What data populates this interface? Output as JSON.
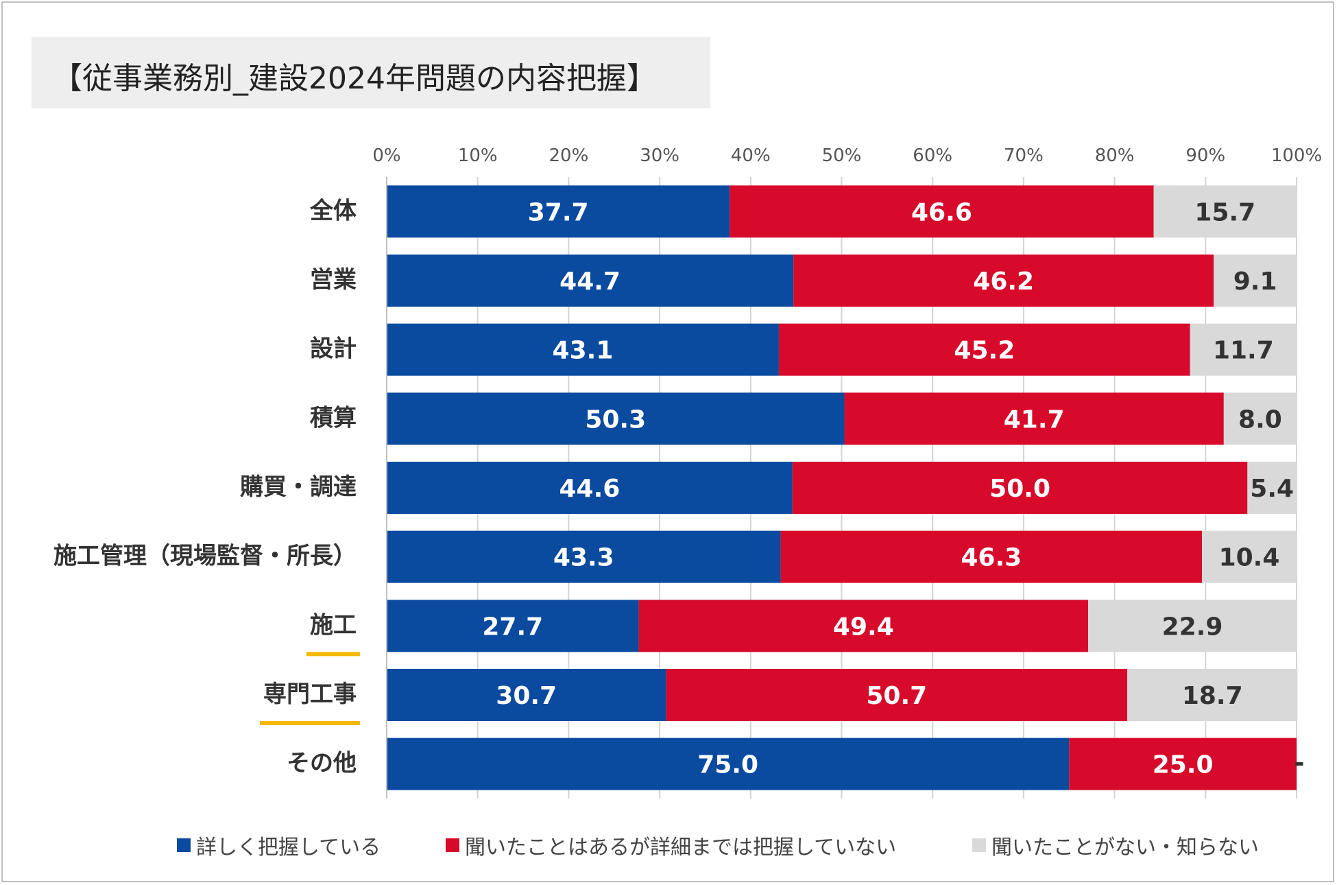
{
  "title": "【従事業務別_建設2024年問題の内容把握】",
  "chart_data": {
    "type": "bar",
    "orientation": "horizontal",
    "stacked": true,
    "title": "【従事業務別_建設2024年問題の内容把握】",
    "xlabel": "",
    "ylabel": "",
    "xlim": [
      0,
      100
    ],
    "x_ticks": [
      "0%",
      "10%",
      "20%",
      "30%",
      "40%",
      "50%",
      "60%",
      "70%",
      "80%",
      "90%",
      "100%"
    ],
    "categories": [
      "全体",
      "営業",
      "設計",
      "積算",
      "購買・調達",
      "施工管理（現場監督・所長）",
      "施工",
      "専門工事",
      "その他"
    ],
    "highlighted_categories": [
      "施工",
      "専門工事"
    ],
    "series": [
      {
        "name": "詳しく把握している",
        "color": "#0a4a9f",
        "label_color": "#ffffff",
        "values": [
          37.7,
          44.7,
          43.1,
          50.3,
          44.6,
          43.3,
          27.7,
          30.7,
          75.0
        ]
      },
      {
        "name": "聞いたことはあるが詳細までは把握していない",
        "color": "#d70a2b",
        "label_color": "#ffffff",
        "values": [
          46.6,
          46.2,
          45.2,
          41.7,
          50.0,
          46.3,
          49.4,
          50.7,
          25.0
        ]
      },
      {
        "name": "聞いたことがない・知らない",
        "color": "#d9d9d9",
        "label_color": "#333333",
        "values": [
          15.7,
          9.1,
          11.7,
          8.0,
          5.4,
          10.4,
          22.9,
          18.7,
          0
        ]
      }
    ],
    "legend_position": "bottom",
    "highlight_color": "#f5b800"
  }
}
